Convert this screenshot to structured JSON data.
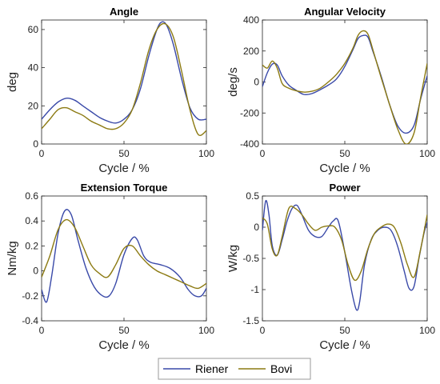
{
  "colors": {
    "riener": "#3949a8",
    "bovi": "#8c7a12",
    "axis": "#222222",
    "legend_border": "#9a9a9a"
  },
  "legend": [
    {
      "name": "Riener",
      "color_key": "riener"
    },
    {
      "name": "Bovi",
      "color_key": "bovi"
    }
  ],
  "chart_data": [
    {
      "type": "line",
      "title": "Angle",
      "xlabel": "Cycle / %",
      "ylabel": "deg",
      "xlim": [
        0,
        100
      ],
      "ylim": [
        0,
        65
      ],
      "xticks": [
        0,
        50,
        100
      ],
      "yticks": [
        0,
        20,
        40,
        60
      ],
      "grid": false,
      "series": [
        {
          "name": "Riener",
          "color_key": "riener",
          "x": [
            0,
            5,
            10,
            15,
            20,
            25,
            30,
            35,
            40,
            45,
            50,
            55,
            60,
            65,
            70,
            73,
            76,
            80,
            85,
            90,
            95,
            100
          ],
          "y": [
            13,
            18,
            22,
            24,
            23,
            20,
            17,
            14,
            12,
            11,
            13,
            18,
            29,
            46,
            60,
            64,
            62,
            52,
            34,
            19,
            13,
            13
          ]
        },
        {
          "name": "Bovi",
          "color_key": "bovi",
          "x": [
            0,
            5,
            10,
            15,
            20,
            25,
            30,
            35,
            40,
            45,
            50,
            55,
            60,
            65,
            70,
            75,
            80,
            85,
            90,
            95,
            100
          ],
          "y": [
            8,
            13,
            18,
            19,
            17,
            15,
            12,
            10,
            8,
            8,
            11,
            18,
            32,
            49,
            60,
            63,
            56,
            38,
            18,
            5,
            7
          ]
        }
      ]
    },
    {
      "type": "line",
      "title": "Angular Velocity",
      "xlabel": "Cycle / %",
      "ylabel": "deg/s",
      "xlim": [
        0,
        100
      ],
      "ylim": [
        -400,
        400
      ],
      "xticks": [
        0,
        50,
        100
      ],
      "yticks": [
        -400,
        -200,
        0,
        200,
        400
      ],
      "grid": false,
      "series": [
        {
          "name": "Riener",
          "color_key": "riener",
          "x": [
            0,
            3,
            6,
            9,
            12,
            16,
            20,
            25,
            30,
            35,
            40,
            45,
            50,
            55,
            58,
            61,
            64,
            67,
            72,
            77,
            82,
            87,
            92,
            96,
            100
          ],
          "y": [
            -30,
            60,
            115,
            110,
            40,
            -20,
            -50,
            -80,
            -75,
            -50,
            -20,
            20,
            100,
            210,
            280,
            300,
            290,
            200,
            40,
            -140,
            -280,
            -330,
            -280,
            -110,
            40
          ]
        },
        {
          "name": "Bovi",
          "color_key": "bovi",
          "x": [
            0,
            3,
            6,
            9,
            12,
            16,
            20,
            25,
            30,
            35,
            40,
            45,
            50,
            55,
            58,
            61,
            64,
            67,
            72,
            77,
            82,
            87,
            92,
            96,
            100
          ],
          "y": [
            110,
            90,
            135,
            90,
            -10,
            -40,
            -55,
            -65,
            -60,
            -40,
            0,
            50,
            120,
            220,
            300,
            330,
            310,
            210,
            30,
            -140,
            -300,
            -400,
            -330,
            -100,
            120
          ]
        }
      ]
    },
    {
      "type": "line",
      "title": "Extension Torque",
      "xlabel": "Cycle / %",
      "ylabel": "Nm/kg",
      "xlim": [
        0,
        100
      ],
      "ylim": [
        -0.4,
        0.6
      ],
      "xticks": [
        0,
        50,
        100
      ],
      "yticks": [
        -0.4,
        -0.2,
        0,
        0.2,
        0.4,
        0.6
      ],
      "grid": false,
      "series": [
        {
          "name": "Riener",
          "color_key": "riener",
          "x": [
            0,
            3,
            6,
            10,
            14,
            18,
            22,
            27,
            32,
            37,
            41,
            45,
            50,
            55,
            58,
            62,
            66,
            72,
            78,
            84,
            89,
            93,
            97,
            100
          ],
          "y": [
            -0.15,
            -0.25,
            -0.05,
            0.3,
            0.48,
            0.45,
            0.25,
            0.02,
            -0.13,
            -0.2,
            -0.2,
            -0.1,
            0.13,
            0.26,
            0.25,
            0.12,
            0.07,
            0.05,
            0.02,
            -0.05,
            -0.15,
            -0.2,
            -0.2,
            -0.14
          ]
        },
        {
          "name": "Bovi",
          "color_key": "bovi",
          "x": [
            0,
            5,
            10,
            15,
            20,
            25,
            30,
            35,
            40,
            45,
            50,
            55,
            60,
            65,
            70,
            75,
            80,
            85,
            90,
            95,
            100
          ],
          "y": [
            -0.05,
            0.12,
            0.33,
            0.41,
            0.35,
            0.2,
            0.05,
            -0.02,
            -0.05,
            0.05,
            0.18,
            0.2,
            0.12,
            0.05,
            0.0,
            -0.03,
            -0.06,
            -0.09,
            -0.12,
            -0.14,
            -0.1
          ]
        }
      ]
    },
    {
      "type": "line",
      "title": "Power",
      "xlabel": "Cycle / %",
      "ylabel": "W/kg",
      "xlim": [
        0,
        100
      ],
      "ylim": [
        -1.5,
        0.5
      ],
      "xticks": [
        0,
        50,
        100
      ],
      "yticks": [
        -1.5,
        -1,
        -0.5,
        0,
        0.5
      ],
      "grid": false,
      "series": [
        {
          "name": "Riener",
          "color_key": "riener",
          "x": [
            0,
            2,
            4,
            6,
            9,
            12,
            15,
            18,
            21,
            24,
            28,
            32,
            36,
            40,
            43,
            46,
            50,
            54,
            57,
            59,
            62,
            66,
            70,
            74,
            78,
            82,
            86,
            89,
            92,
            95,
            98,
            100
          ],
          "y": [
            -0.05,
            0.42,
            0.2,
            -0.3,
            -0.45,
            -0.2,
            0.1,
            0.3,
            0.35,
            0.2,
            -0.05,
            -0.15,
            -0.15,
            0.0,
            0.1,
            0.1,
            -0.4,
            -1.0,
            -1.32,
            -1.2,
            -0.6,
            -0.2,
            -0.05,
            0.0,
            -0.05,
            -0.3,
            -0.7,
            -0.98,
            -0.95,
            -0.5,
            -0.1,
            0.08
          ]
        },
        {
          "name": "Bovi",
          "color_key": "bovi",
          "x": [
            0,
            3,
            6,
            9,
            12,
            16,
            20,
            24,
            28,
            32,
            36,
            40,
            44,
            48,
            52,
            56,
            60,
            64,
            68,
            72,
            76,
            80,
            84,
            88,
            92,
            96,
            100
          ],
          "y": [
            0.15,
            0.05,
            -0.35,
            -0.45,
            -0.15,
            0.3,
            0.3,
            0.2,
            0.05,
            -0.05,
            0.0,
            0.02,
            0.0,
            -0.2,
            -0.6,
            -0.85,
            -0.7,
            -0.35,
            -0.1,
            0.0,
            0.05,
            0.0,
            -0.25,
            -0.6,
            -0.8,
            -0.35,
            0.2
          ]
        }
      ]
    }
  ]
}
